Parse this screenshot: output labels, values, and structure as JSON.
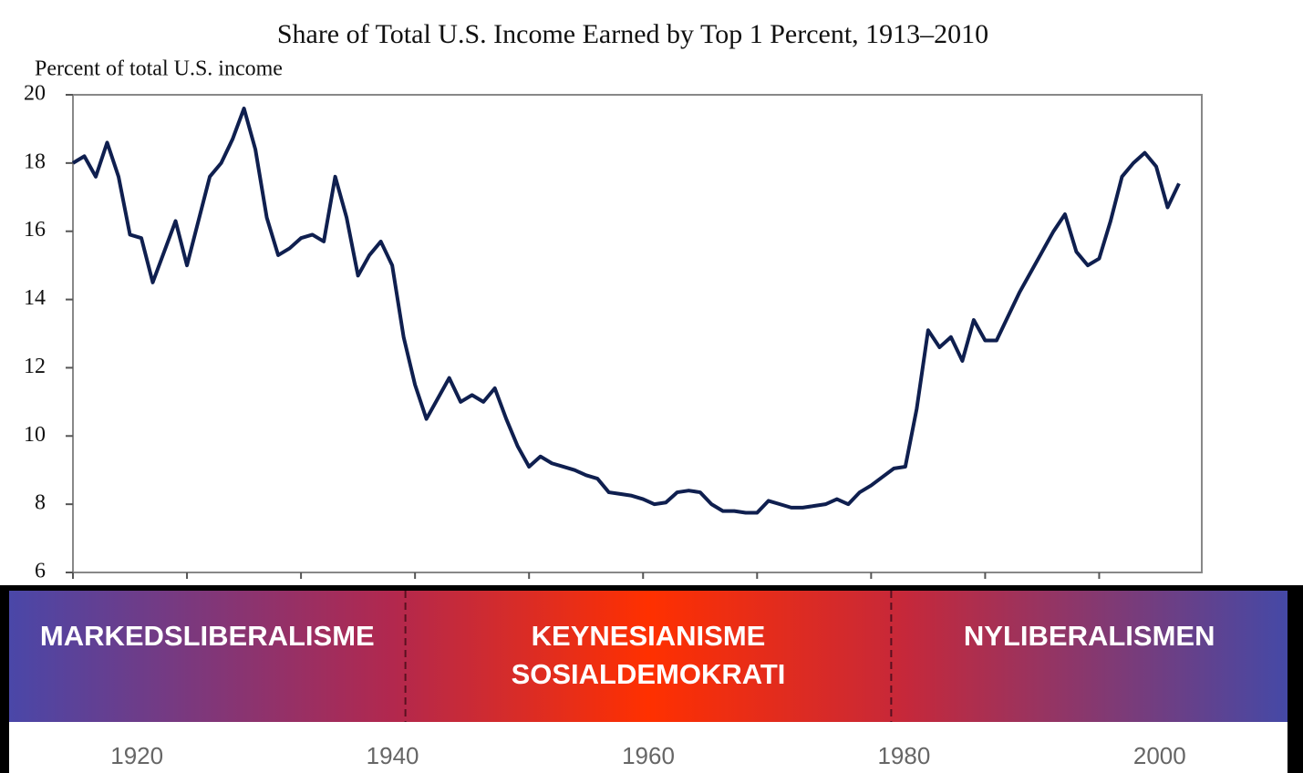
{
  "chart_data": {
    "type": "line",
    "title": "Share of Total U.S. Income Earned by Top 1 Percent, 1913–2010",
    "y_label": "Percent of total U.S. income",
    "x": [
      1913,
      1914,
      1915,
      1916,
      1917,
      1918,
      1919,
      1920,
      1921,
      1922,
      1923,
      1924,
      1925,
      1926,
      1927,
      1928,
      1929,
      1930,
      1931,
      1932,
      1933,
      1934,
      1935,
      1936,
      1937,
      1938,
      1939,
      1940,
      1941,
      1942,
      1943,
      1944,
      1945,
      1946,
      1947,
      1948,
      1949,
      1950,
      1951,
      1952,
      1953,
      1954,
      1955,
      1956,
      1957,
      1958,
      1959,
      1960,
      1961,
      1962,
      1963,
      1964,
      1965,
      1966,
      1967,
      1968,
      1969,
      1970,
      1971,
      1972,
      1973,
      1974,
      1975,
      1976,
      1977,
      1978,
      1979,
      1980,
      1981,
      1982,
      1983,
      1984,
      1985,
      1986,
      1987,
      1988,
      1989,
      1990,
      1991,
      1992,
      1993,
      1994,
      1995,
      1996,
      1997,
      1998,
      1999,
      2000,
      2001,
      2002,
      2003,
      2004,
      2005,
      2006,
      2007,
      2008,
      2009,
      2010
    ],
    "values": [
      18.0,
      18.2,
      17.6,
      18.6,
      17.6,
      15.9,
      15.8,
      14.5,
      15.4,
      16.3,
      15.0,
      16.3,
      17.6,
      18.0,
      18.7,
      19.6,
      18.4,
      16.4,
      15.3,
      15.5,
      15.8,
      15.9,
      15.7,
      17.6,
      16.4,
      14.7,
      15.3,
      15.7,
      15.0,
      12.9,
      11.5,
      10.5,
      11.1,
      11.7,
      11.0,
      11.2,
      11.0,
      11.4,
      10.5,
      9.7,
      9.1,
      9.4,
      9.2,
      9.1,
      9.0,
      8.85,
      8.75,
      8.35,
      8.3,
      8.25,
      8.15,
      8.0,
      8.05,
      8.35,
      8.4,
      8.35,
      8.0,
      7.8,
      7.8,
      7.75,
      7.75,
      8.1,
      8.0,
      7.9,
      7.9,
      7.95,
      8.0,
      8.15,
      8.0,
      8.35,
      8.55,
      8.8,
      9.05,
      9.1,
      10.8,
      13.1,
      12.6,
      12.9,
      12.2,
      13.4,
      12.8,
      12.8,
      13.5,
      14.2,
      14.8,
      15.4,
      16.0,
      16.5,
      15.4,
      15.0,
      15.2,
      16.3,
      17.6,
      18.0,
      18.3,
      17.9,
      16.7,
      17.4
    ],
    "color": "#0f1f4f",
    "xlim": [
      1913,
      2012
    ],
    "xticks": [
      1913,
      1923,
      1933,
      1943,
      1953,
      1963,
      1973,
      1983,
      1993,
      2003
    ],
    "ylim": [
      6,
      20
    ],
    "yticks": [
      6,
      8,
      10,
      12,
      14,
      16,
      18,
      20
    ],
    "eras": [
      {
        "lines": [
          "MARKEDSLIBERALISME"
        ],
        "start": 1910,
        "end": 1941
      },
      {
        "lines": [
          "KEYNESIANISME",
          "SOSIALDEMOKRATI"
        ],
        "start": 1941,
        "end": 1979
      },
      {
        "lines": [
          "NYLIBERALISMEN"
        ],
        "start": 1979,
        "end": 2010
      }
    ],
    "era_xlim": [
      1910,
      2010
    ],
    "era_xticks": [
      1920,
      1940,
      1960,
      1980,
      2000
    ]
  }
}
